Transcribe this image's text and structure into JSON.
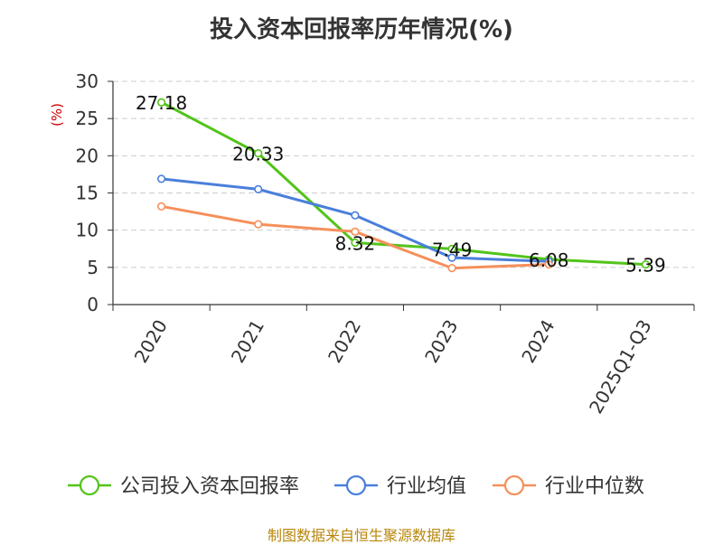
{
  "title": "投入资本回报率历年情况(%)",
  "y_unit_label": "(%)",
  "source": "制图数据来自恒生聚源数据库",
  "colors": {
    "company": "#52c41a",
    "industry_avg": "#4a7fdb",
    "industry_median": "#f5905a",
    "unit_label": "#cc0000",
    "axis": "#333333",
    "grid": "#cccccc",
    "source": "#b8860b"
  },
  "chart_data": {
    "type": "line",
    "title": "投入资本回报率历年情况(%)",
    "ylabel": "(%)",
    "xlabel": "",
    "categories": [
      "2020",
      "2021",
      "2022",
      "2023",
      "2024",
      "2025Q1-Q3"
    ],
    "ylim": [
      0,
      30
    ],
    "yticks": [
      0,
      5,
      10,
      15,
      20,
      25,
      30
    ],
    "grid": "horizontal dashed",
    "legend_position": "bottom",
    "series": [
      {
        "name": "公司投入资本回报率",
        "color": "#52c41a",
        "values": [
          27.18,
          20.33,
          8.32,
          7.49,
          6.08,
          5.39
        ],
        "labels": [
          "27.18",
          "20.33",
          "8.32",
          "7.49",
          "6.08",
          "5.39"
        ]
      },
      {
        "name": "行业均值",
        "color": "#4a7fdb",
        "values": [
          16.9,
          15.5,
          12.0,
          6.3,
          5.8,
          null
        ]
      },
      {
        "name": "行业中位数",
        "color": "#f5905a",
        "values": [
          13.2,
          10.8,
          9.8,
          4.9,
          5.4,
          null
        ]
      }
    ]
  }
}
